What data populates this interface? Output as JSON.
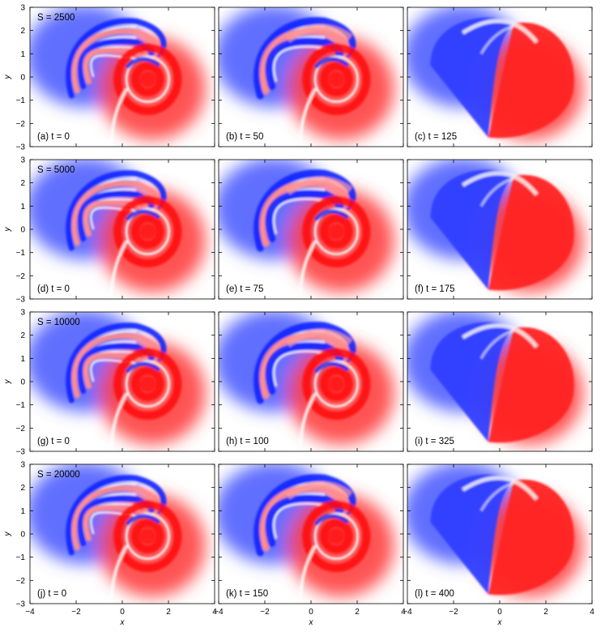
{
  "chart_data": {
    "type": "heatmap",
    "layout": {
      "rows": 4,
      "cols": 3
    },
    "xlabel": "x",
    "ylabel": "y",
    "xlim": [
      -4,
      4
    ],
    "ylim": [
      -3,
      3
    ],
    "xticks": [
      -4,
      -2,
      0,
      2,
      4
    ],
    "yticks": [
      -3,
      -2,
      -1,
      0,
      1,
      2,
      3
    ],
    "colormap": {
      "negative": "#0000ff",
      "zero": "#ffffff",
      "positive": "#ff0000"
    },
    "rows": [
      {
        "s_label": "S = 2500",
        "panels": [
          {
            "label": "(a) t = 0",
            "t": 0
          },
          {
            "label": "(b) t = 50",
            "t": 50
          },
          {
            "label": "(c) t = 125",
            "t": 125
          }
        ]
      },
      {
        "s_label": "S = 5000",
        "panels": [
          {
            "label": "(d) t = 0",
            "t": 0
          },
          {
            "label": "(e) t = 75",
            "t": 75
          },
          {
            "label": "(f) t = 175",
            "t": 175
          }
        ]
      },
      {
        "s_label": "S = 10000",
        "panels": [
          {
            "label": "(g) t = 0",
            "t": 0
          },
          {
            "label": "(h) t = 100",
            "t": 100
          },
          {
            "label": "(i) t = 325",
            "t": 325
          }
        ]
      },
      {
        "s_label": "S = 20000",
        "panels": [
          {
            "label": "(j) t = 0",
            "t": 0
          },
          {
            "label": "(k) t = 150",
            "t": 150
          },
          {
            "label": "(l) t = 400",
            "t": 400
          }
        ]
      }
    ]
  }
}
